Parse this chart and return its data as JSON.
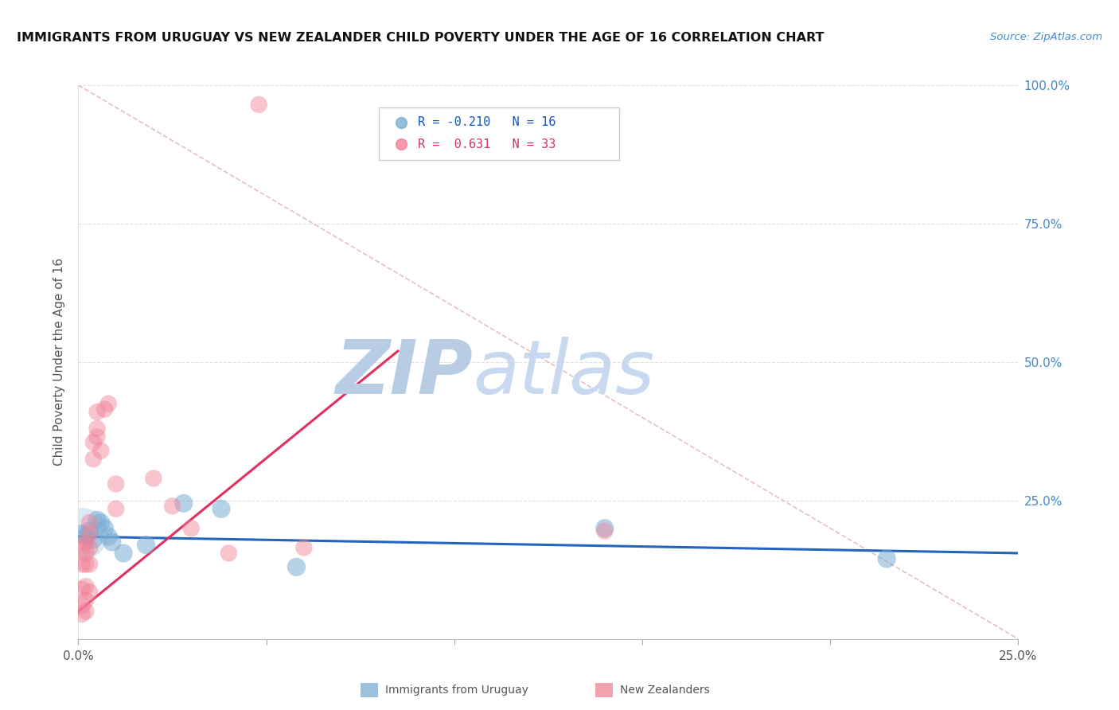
{
  "title": "IMMIGRANTS FROM URUGUAY VS NEW ZEALANDER CHILD POVERTY UNDER THE AGE OF 16 CORRELATION CHART",
  "source": "Source: ZipAtlas.com",
  "ylabel": "Child Poverty Under the Age of 16",
  "xlim": [
    0.0,
    0.25
  ],
  "ylim": [
    0.0,
    1.0
  ],
  "legend_entries": [
    {
      "label": "Immigrants from Uruguay",
      "color": "#aac4e2",
      "R": "-0.210",
      "N": "16"
    },
    {
      "label": "New Zealanders",
      "color": "#f4a0b5",
      "R": "0.631",
      "N": "33"
    }
  ],
  "watermark_zip": "ZIP",
  "watermark_atlas": "atlas",
  "blue_line_x": [
    0.0,
    0.25
  ],
  "blue_line_y": [
    0.185,
    0.155
  ],
  "pink_line_x": [
    0.0,
    0.085
  ],
  "pink_line_y": [
    0.05,
    0.52
  ],
  "diag_line_x": [
    0.0,
    0.25
  ],
  "diag_line_y": [
    1.0,
    0.0
  ],
  "blue_points": [
    [
      0.001,
      0.19
    ],
    [
      0.002,
      0.185
    ],
    [
      0.003,
      0.195
    ],
    [
      0.004,
      0.18
    ],
    [
      0.005,
      0.215
    ],
    [
      0.006,
      0.21
    ],
    [
      0.007,
      0.2
    ],
    [
      0.008,
      0.185
    ],
    [
      0.009,
      0.175
    ],
    [
      0.012,
      0.155
    ],
    [
      0.018,
      0.17
    ],
    [
      0.028,
      0.245
    ],
    [
      0.038,
      0.235
    ],
    [
      0.058,
      0.13
    ],
    [
      0.14,
      0.2
    ],
    [
      0.215,
      0.145
    ]
  ],
  "pink_points": [
    [
      0.001,
      0.165
    ],
    [
      0.001,
      0.135
    ],
    [
      0.001,
      0.09
    ],
    [
      0.001,
      0.06
    ],
    [
      0.001,
      0.045
    ],
    [
      0.002,
      0.175
    ],
    [
      0.002,
      0.155
    ],
    [
      0.002,
      0.135
    ],
    [
      0.002,
      0.095
    ],
    [
      0.002,
      0.07
    ],
    [
      0.002,
      0.05
    ],
    [
      0.003,
      0.21
    ],
    [
      0.003,
      0.19
    ],
    [
      0.003,
      0.165
    ],
    [
      0.003,
      0.135
    ],
    [
      0.003,
      0.085
    ],
    [
      0.004,
      0.355
    ],
    [
      0.004,
      0.325
    ],
    [
      0.005,
      0.41
    ],
    [
      0.005,
      0.38
    ],
    [
      0.005,
      0.365
    ],
    [
      0.006,
      0.34
    ],
    [
      0.007,
      0.415
    ],
    [
      0.008,
      0.425
    ],
    [
      0.01,
      0.28
    ],
    [
      0.01,
      0.235
    ],
    [
      0.02,
      0.29
    ],
    [
      0.025,
      0.24
    ],
    [
      0.03,
      0.2
    ],
    [
      0.04,
      0.155
    ],
    [
      0.06,
      0.165
    ],
    [
      0.14,
      0.195
    ],
    [
      0.048,
      0.965
    ]
  ],
  "blue_color": "#7aadd4",
  "pink_color": "#f08095",
  "blue_line_color": "#2563c0",
  "pink_line_color": "#e03060",
  "diag_color": "#e0b0b8",
  "bg_color": "#ffffff",
  "grid_color": "#e0e0e0",
  "title_color": "#111111",
  "axis_label_color": "#555555",
  "right_axis_color": "#4488cc",
  "watermark_color_zip": "#b8cce4",
  "watermark_color_atlas": "#c8d8ee"
}
